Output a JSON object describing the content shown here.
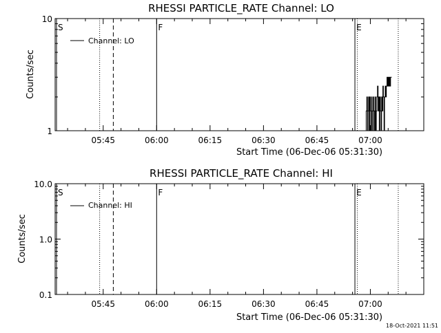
{
  "chart_data": [
    {
      "type": "line",
      "title": "RHESSI PARTICLE_RATE Channel: LO",
      "xlabel": "Start Time (06-Dec-06 05:31:30)",
      "ylabel": "Counts/sec",
      "yscale": "log",
      "xlim": [
        "05:31:30",
        "07:15:00"
      ],
      "ylim": [
        1,
        10
      ],
      "x_ticks": [
        "05:45",
        "06:00",
        "06:15",
        "06:30",
        "06:45",
        "07:00"
      ],
      "y_ticks": [
        "1",
        "10"
      ],
      "legend": {
        "position": "top-left",
        "entries": [
          "Channel: LO"
        ]
      },
      "grid": false,
      "markers": [
        {
          "label": "S",
          "time": "05:31:30",
          "style": "solid"
        },
        {
          "label": "",
          "time": "05:44:00",
          "style": "dotted"
        },
        {
          "label": "",
          "time": "05:47:50",
          "style": "dashed"
        },
        {
          "label": "F",
          "time": "06:00:00",
          "style": "solid"
        },
        {
          "label": "E",
          "time": "06:55:40",
          "style": "solid"
        },
        {
          "label": "",
          "time": "06:56:20",
          "style": "dotted"
        },
        {
          "label": "",
          "time": "07:07:50",
          "style": "dotted"
        }
      ],
      "series": [
        {
          "name": "Channel: LO",
          "x": [
            "06:55:30",
            "06:58:50",
            "06:58:50",
            "06:59:00",
            "06:59:00",
            "06:59:10",
            "06:59:10",
            "06:59:20",
            "06:59:20",
            "06:59:30",
            "06:59:30",
            "06:59:40",
            "06:59:40",
            "06:59:50",
            "06:59:50",
            "07:00:00",
            "07:00:00",
            "07:00:10",
            "07:00:10",
            "07:00:20",
            "07:00:20",
            "07:00:30",
            "07:00:30",
            "07:00:40",
            "07:00:40",
            "07:00:50",
            "07:00:50",
            "07:01:00",
            "07:01:00",
            "07:01:10",
            "07:01:10",
            "07:01:20",
            "07:01:20",
            "07:01:30",
            "07:01:30",
            "07:01:40",
            "07:01:40",
            "07:01:50",
            "07:01:50",
            "07:02:00",
            "07:02:00",
            "07:02:10",
            "07:02:10",
            "07:02:20",
            "07:02:20",
            "07:02:30",
            "07:02:30",
            "07:02:40",
            "07:02:40",
            "07:02:50",
            "07:02:50",
            "07:03:00",
            "07:03:00",
            "07:03:10",
            "07:03:10",
            "07:03:20",
            "07:03:20",
            "07:03:30",
            "07:03:30",
            "07:03:40",
            "07:03:40",
            "07:03:50",
            "07:03:50",
            "07:04:00",
            "07:04:00",
            "07:04:10",
            "07:04:10",
            "07:04:20",
            "07:04:20",
            "07:04:30",
            "07:04:30",
            "07:04:40",
            "07:04:40",
            "07:04:50",
            "07:04:50",
            "07:05:00",
            "07:05:00",
            "07:05:10",
            "07:05:10",
            "07:05:20",
            "07:05:20",
            "07:05:30",
            "07:05:30",
            "07:05:40",
            "07:05:40",
            "07:06:00"
          ],
          "y": [
            1,
            1,
            1.5,
            1.5,
            2,
            2,
            1,
            1,
            1.5,
            1.5,
            2,
            2,
            1,
            1,
            2,
            2,
            1.5,
            1.5,
            1,
            1,
            2,
            2,
            1.5,
            1.5,
            1,
            1,
            2,
            2,
            1.5,
            1.5,
            1,
            1,
            2,
            2,
            1,
            1,
            1.5,
            1.5,
            2,
            2,
            2.5,
            2.5,
            1.5,
            1.5,
            2,
            2,
            1,
            1,
            2,
            2,
            1.5,
            1.5,
            1,
            1,
            2,
            2,
            1.5,
            1.5,
            2.5,
            2.5,
            2,
            2,
            1,
            1,
            2,
            2,
            2.5,
            2.5,
            2,
            2,
            2.5,
            2.5,
            3,
            3,
            2.5,
            2.5,
            3,
            3,
            2.5,
            2.5,
            3,
            3,
            2.5,
            2.5,
            3,
            3
          ]
        }
      ]
    },
    {
      "type": "line",
      "title": "RHESSI PARTICLE_RATE Channel: HI",
      "xlabel": "Start Time (06-Dec-06 05:31:30)",
      "ylabel": "Counts/sec",
      "yscale": "log",
      "xlim": [
        "05:31:30",
        "07:15:00"
      ],
      "ylim": [
        0.1,
        10
      ],
      "x_ticks": [
        "05:45",
        "06:00",
        "06:15",
        "06:30",
        "06:45",
        "07:00"
      ],
      "y_ticks": [
        "0.1",
        "1.0",
        "10.0"
      ],
      "legend": {
        "position": "top-left",
        "entries": [
          "Channel: HI"
        ]
      },
      "grid": false,
      "markers": [
        {
          "label": "S",
          "time": "05:31:30",
          "style": "solid"
        },
        {
          "label": "",
          "time": "05:44:00",
          "style": "dotted"
        },
        {
          "label": "",
          "time": "05:47:50",
          "style": "dashed"
        },
        {
          "label": "F",
          "time": "06:00:00",
          "style": "solid"
        },
        {
          "label": "E",
          "time": "06:55:40",
          "style": "solid"
        },
        {
          "label": "",
          "time": "06:56:20",
          "style": "dotted"
        },
        {
          "label": "",
          "time": "07:07:50",
          "style": "dotted"
        }
      ],
      "series": [
        {
          "name": "Channel: HI",
          "x": [],
          "y": []
        }
      ]
    }
  ],
  "footer": {
    "timestamp": "18-Oct-2021 11:51"
  }
}
